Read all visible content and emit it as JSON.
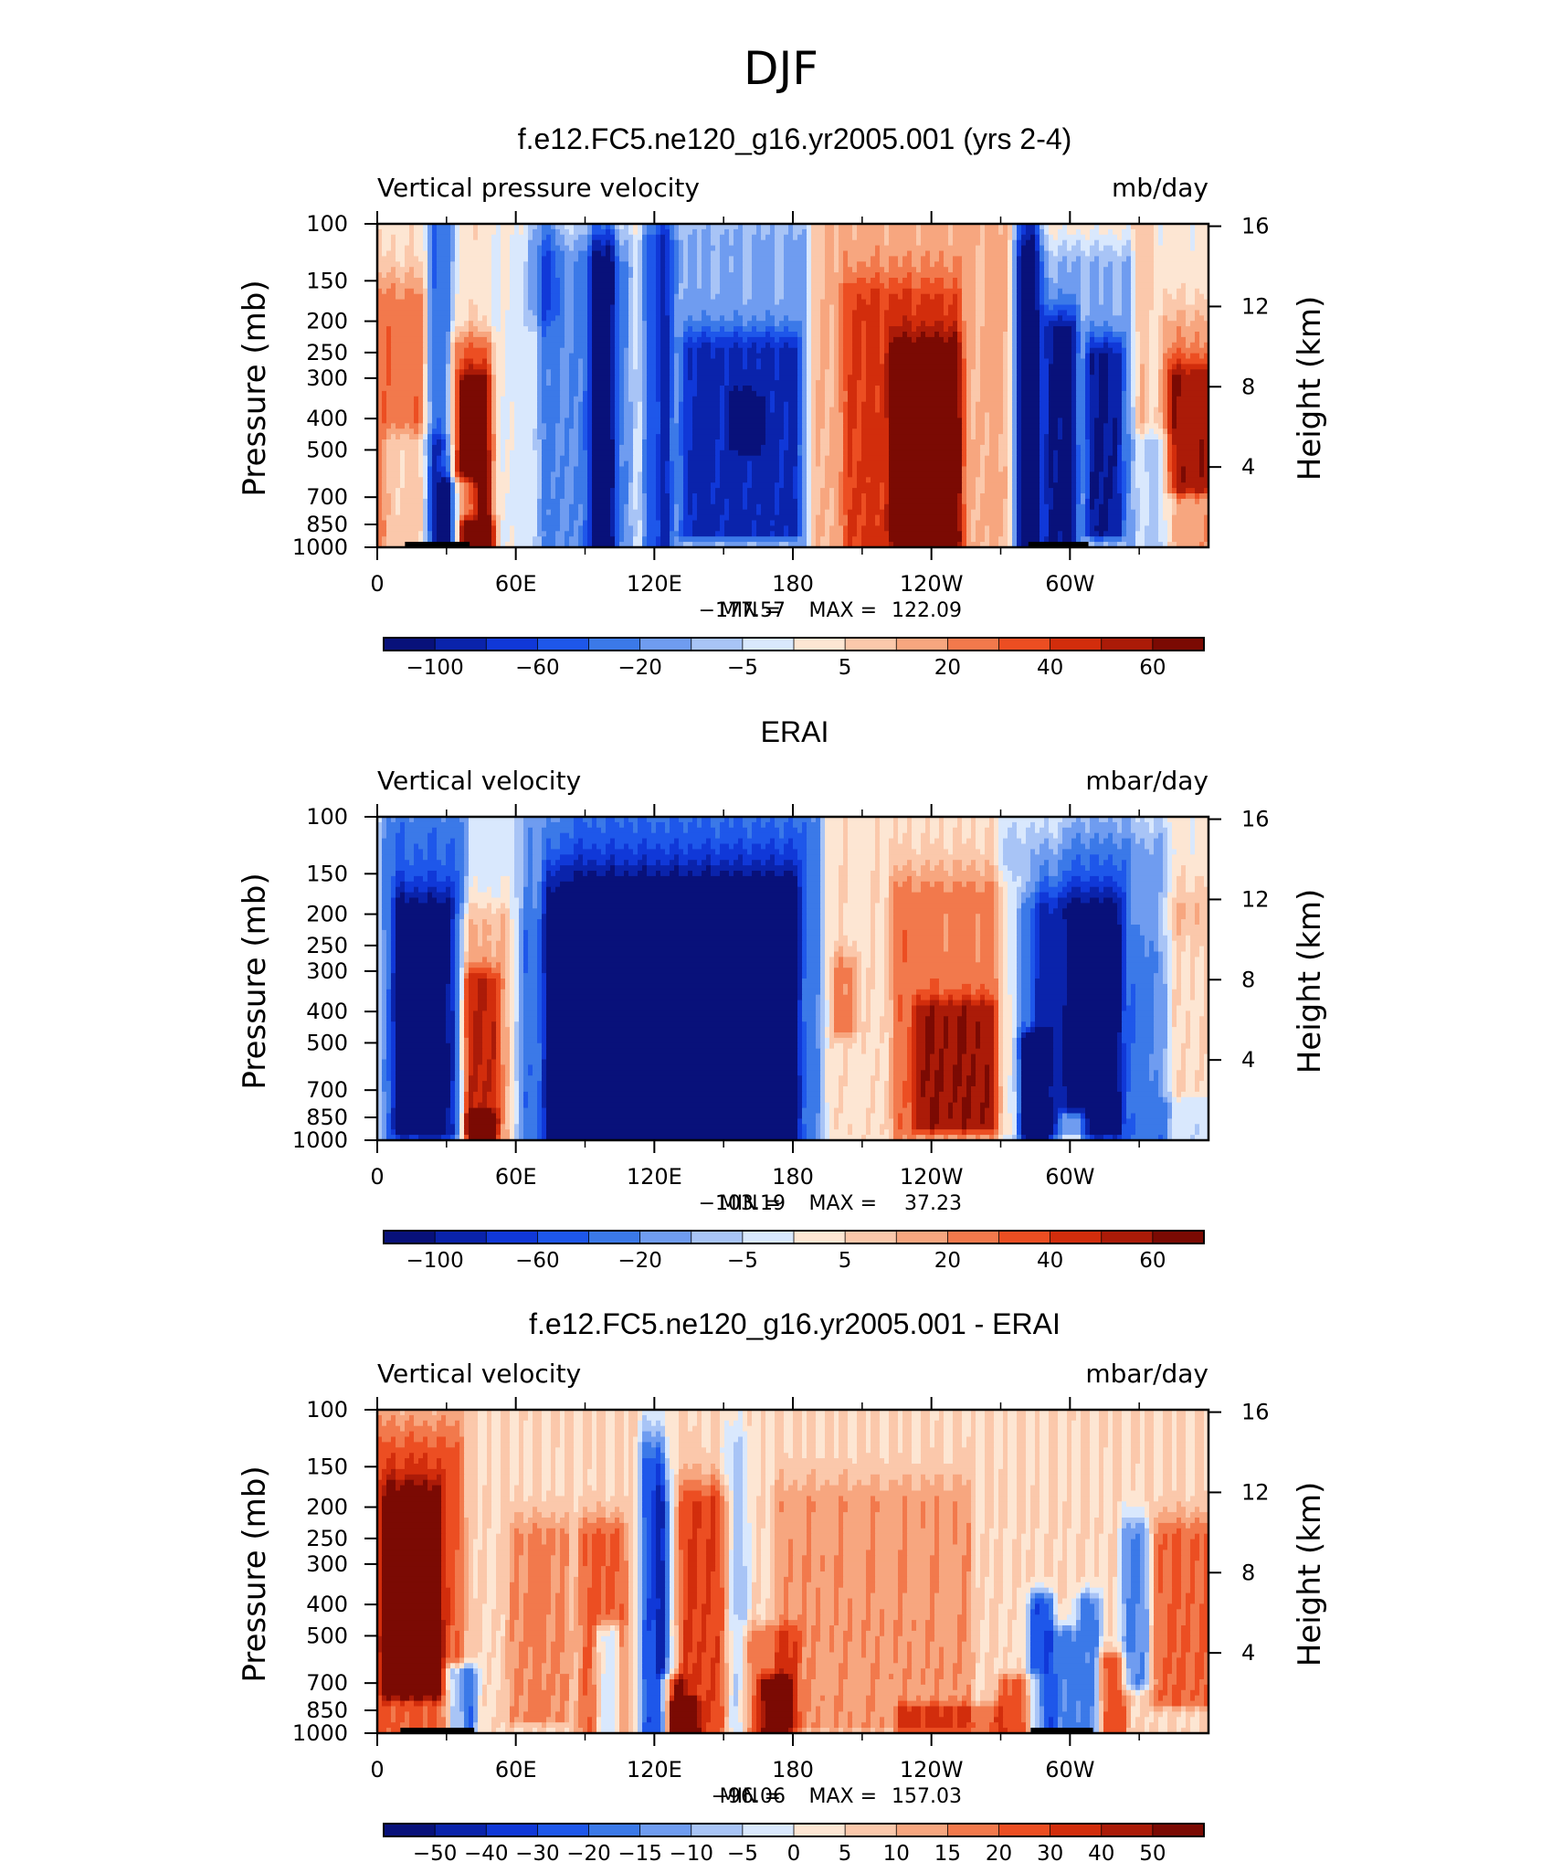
{
  "figure": {
    "season_title": "DJF"
  },
  "colors": {
    "cmap": [
      "#08117a",
      "#0a23ab",
      "#1038d8",
      "#1e57ea",
      "#3b79e8",
      "#6f9cf0",
      "#a8c4f6",
      "#d9e8fd",
      "#fde6d3",
      "#fbc8ab",
      "#f7a67f",
      "#f2794c",
      "#ec4e22",
      "#d22d0c",
      "#ab1b08",
      "#7b0a03"
    ],
    "mask": "#000000"
  },
  "chart_data": [
    {
      "type": "heatmap",
      "title": "f.e12.FC5.ne120_g16.yr2005.001 (yrs 2-4)",
      "left_label": "Vertical pressure velocity",
      "right_label": "mb/day",
      "ylabel": "Pressure (mb)",
      "y2label": "Height (km)",
      "y_ticks": [
        "100",
        "150",
        "200",
        "250",
        "300",
        "400",
        "500",
        "700",
        "850",
        "1000"
      ],
      "y_tick_values": [
        100,
        150,
        200,
        250,
        300,
        400,
        500,
        700,
        850,
        1000
      ],
      "y2_ticks": [
        "4",
        "8",
        "12",
        "16"
      ],
      "y2_tick_values": [
        4,
        8,
        12,
        16
      ],
      "x_ticks": [
        "0",
        "60E",
        "120E",
        "180",
        "120W",
        "60W"
      ],
      "x_tick_values": [
        0,
        60,
        120,
        180,
        240,
        300
      ],
      "xlim": [
        0,
        360
      ],
      "ylim": [
        1000,
        100
      ],
      "stats": {
        "min_label": "MIN = ",
        "min": "−177.57",
        "max_label": "MAX = ",
        "max": "122.09"
      },
      "colorbar_levels": [
        -100,
        -80,
        -60,
        -40,
        -20,
        -10,
        -5,
        -1,
        1,
        5,
        10,
        20,
        30,
        40,
        50,
        60
      ],
      "colorbar_labels": [
        "−100",
        "−60",
        "−20",
        "−5",
        "5",
        "20",
        "40",
        "60"
      ],
      "features": [
        [
          0,
          360,
          100,
          1000,
          0.5
        ],
        [
          190,
          330,
          100,
          1000,
          1.7
        ],
        [
          205,
          250,
          180,
          980,
          3.0
        ],
        [
          225,
          250,
          260,
          960,
          4.0
        ],
        [
          0,
          18,
          180,
          1000,
          3.1
        ],
        [
          34,
          48,
          250,
          1000,
          3.6
        ],
        [
          38,
          46,
          320,
          970,
          4.6
        ],
        [
          39,
          47,
          860,
          1000,
          5.9
        ],
        [
          6,
          28,
          480,
          1000,
          -2.2
        ],
        [
          25,
          30,
          100,
          1000,
          -4.2
        ],
        [
          30,
          40,
          650,
          1000,
          -5.2
        ],
        [
          73,
          108,
          140,
          990,
          -3.5
        ],
        [
          95,
          100,
          130,
          1000,
          -4.9
        ],
        [
          118,
          124,
          120,
          1000,
          -4.9
        ],
        [
          125,
          185,
          120,
          990,
          -2.7
        ],
        [
          135,
          180,
          250,
          900,
          -4.1
        ],
        [
          158,
          162,
          380,
          460,
          -6.0
        ],
        [
          50,
          70,
          140,
          1000,
          -0.8
        ],
        [
          278,
          325,
          140,
          1000,
          -4.2
        ],
        [
          280,
          284,
          100,
          1000,
          -6.5
        ],
        [
          292,
          300,
          220,
          1000,
          -5.4
        ],
        [
          310,
          320,
          260,
          900,
          -5.0
        ],
        [
          330,
          342,
          480,
          980,
          -2.3
        ],
        [
          342,
          360,
          220,
          1000,
          2.2
        ],
        [
          345,
          358,
          300,
          650,
          4.0
        ],
        [
          68,
          75,
          100,
          170,
          -2.0
        ]
      ],
      "masks": [
        [
          12,
          40,
          962,
          1000
        ],
        [
          282,
          308,
          962,
          1000
        ]
      ]
    },
    {
      "type": "heatmap",
      "title": "ERAI",
      "left_label": "Vertical velocity",
      "right_label": "mbar/day",
      "ylabel": "Pressure (mb)",
      "y2label": "Height (km)",
      "y_ticks": [
        "100",
        "150",
        "200",
        "250",
        "300",
        "400",
        "500",
        "700",
        "850",
        "1000"
      ],
      "y_tick_values": [
        100,
        150,
        200,
        250,
        300,
        400,
        500,
        700,
        850,
        1000
      ],
      "y2_ticks": [
        "4",
        "8",
        "12",
        "16"
      ],
      "y2_tick_values": [
        4,
        8,
        12,
        16
      ],
      "x_ticks": [
        "0",
        "60E",
        "120E",
        "180",
        "120W",
        "60W"
      ],
      "x_tick_values": [
        0,
        60,
        120,
        180,
        240,
        300
      ],
      "xlim": [
        0,
        360
      ],
      "ylim": [
        1000,
        100
      ],
      "stats": {
        "min_label": "MIN = ",
        "min": "−103.19",
        "max_label": "MAX = ",
        "max": "37.23"
      },
      "colorbar_levels": [
        -100,
        -80,
        -60,
        -40,
        -20,
        -10,
        -5,
        -1,
        1,
        5,
        10,
        20,
        30,
        40,
        50,
        60
      ],
      "colorbar_labels": [
        "−100",
        "−60",
        "−20",
        "−5",
        "5",
        "20",
        "40",
        "60"
      ],
      "features": [
        [
          0,
          360,
          100,
          1000,
          -0.6
        ],
        [
          195,
          295,
          100,
          1000,
          1.3
        ],
        [
          225,
          282,
          180,
          960,
          2.8
        ],
        [
          235,
          265,
          400,
          900,
          3.4
        ],
        [
          5,
          35,
          120,
          1000,
          -3.2
        ],
        [
          10,
          32,
          200,
          950,
          -4.1
        ],
        [
          35,
          55,
          220,
          1000,
          2.6
        ],
        [
          40,
          50,
          330,
          940,
          4.0
        ],
        [
          42,
          48,
          860,
          1000,
          6.0
        ],
        [
          65,
          190,
          110,
          1000,
          -3.1
        ],
        [
          75,
          180,
          170,
          980,
          -4.2
        ],
        [
          80,
          170,
          280,
          900,
          -5.0
        ],
        [
          100,
          106,
          300,
          700,
          -6.0
        ],
        [
          272,
          340,
          140,
          1000,
          -3.0
        ],
        [
          280,
          320,
          200,
          950,
          -4.2
        ],
        [
          282,
          287,
          500,
          1000,
          -6.0
        ],
        [
          299,
          303,
          860,
          1000,
          5.5
        ],
        [
          340,
          360,
          200,
          700,
          1.5
        ],
        [
          330,
          360,
          100,
          200,
          1.0
        ],
        [
          65,
          78,
          100,
          150,
          1.0
        ],
        [
          200,
          205,
          300,
          450,
          2.5
        ]
      ],
      "masks": []
    },
    {
      "type": "heatmap",
      "title": "f.e12.FC5.ne120_g16.yr2005.001 - ERAI",
      "left_label": "Vertical velocity",
      "right_label": "mbar/day",
      "ylabel": "Pressure (mb)",
      "y2label": "Height (km)",
      "y_ticks": [
        "100",
        "150",
        "200",
        "250",
        "300",
        "400",
        "500",
        "700",
        "850",
        "1000"
      ],
      "y_tick_values": [
        100,
        150,
        200,
        250,
        300,
        400,
        500,
        700,
        850,
        1000
      ],
      "y2_ticks": [
        "4",
        "8",
        "12",
        "16"
      ],
      "y2_tick_values": [
        4,
        8,
        12,
        16
      ],
      "x_ticks": [
        "0",
        "60E",
        "120E",
        "180",
        "120W",
        "60W"
      ],
      "x_tick_values": [
        0,
        60,
        120,
        180,
        240,
        300
      ],
      "xlim": [
        0,
        360
      ],
      "ylim": [
        1000,
        100
      ],
      "stats": {
        "min_label": "MIN = ",
        "min": "−96.06",
        "max_label": "MAX = ",
        "max": "157.03"
      },
      "colorbar_levels": [
        -50,
        -40,
        -30,
        -20,
        -15,
        -10,
        -5,
        0,
        5,
        10,
        15,
        20,
        30,
        40,
        50
      ],
      "colorbar_labels": [
        "−50",
        "−40",
        "−30",
        "−20",
        "−15",
        "−10",
        "−5",
        "0",
        "5",
        "10",
        "15",
        "20",
        "30",
        "40",
        "50"
      ],
      "features": [
        [
          0,
          360,
          100,
          1000,
          1.0
        ],
        [
          0,
          35,
          140,
          1000,
          3.2
        ],
        [
          5,
          25,
          200,
          750,
          4.6
        ],
        [
          8,
          14,
          280,
          600,
          5.6
        ],
        [
          33,
          40,
          650,
          1000,
          -5.5
        ],
        [
          60,
          80,
          250,
          900,
          2.2
        ],
        [
          90,
          105,
          250,
          1000,
          3.2
        ],
        [
          98,
          102,
          500,
          1000,
          -4.5
        ],
        [
          117,
          122,
          150,
          1000,
          -5.5
        ],
        [
          124,
          128,
          200,
          1000,
          -3.2
        ],
        [
          125,
          130,
          700,
          1000,
          4.8
        ],
        [
          130,
          150,
          200,
          1000,
          4.0
        ],
        [
          152,
          158,
          150,
          1000,
          -2.5
        ],
        [
          160,
          180,
          500,
          1000,
          2.6
        ],
        [
          168,
          176,
          700,
          1000,
          4.0
        ],
        [
          175,
          255,
          200,
          950,
          1.8
        ],
        [
          228,
          268,
          850,
          1000,
          2.5
        ],
        [
          272,
          285,
          700,
          1000,
          3.5
        ],
        [
          285,
          290,
          400,
          1000,
          -5.5
        ],
        [
          295,
          300,
          500,
          1000,
          -4.0
        ],
        [
          306,
          310,
          400,
          1000,
          -4.5
        ],
        [
          315,
          322,
          600,
          1000,
          3.5
        ],
        [
          325,
          332,
          250,
          700,
          -4.0
        ],
        [
          338,
          360,
          250,
          800,
          3.0
        ],
        [
          130,
          136,
          820,
          1000,
          5.5
        ]
      ],
      "masks": [
        [
          10,
          42,
          962,
          1000
        ],
        [
          283,
          310,
          962,
          1000
        ]
      ]
    }
  ]
}
